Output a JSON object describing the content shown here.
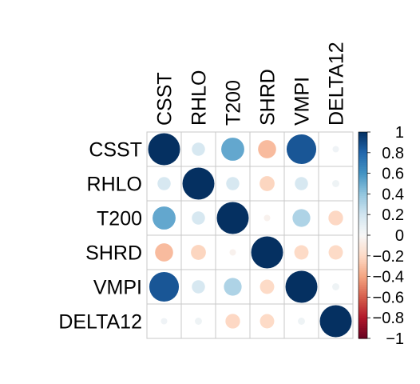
{
  "chart_data": {
    "type": "heatmap",
    "variables": [
      "CSST",
      "RHLO",
      "T200",
      "SHRD",
      "VMPI",
      "DELTA12"
    ],
    "matrix": [
      [
        1.0,
        0.17,
        0.52,
        -0.32,
        0.86,
        0.04
      ],
      [
        0.17,
        1.0,
        0.17,
        -0.22,
        0.17,
        0.05
      ],
      [
        0.52,
        0.17,
        1.0,
        -0.04,
        0.31,
        -0.21
      ],
      [
        -0.32,
        -0.22,
        -0.04,
        1.0,
        -0.2,
        -0.2
      ],
      [
        0.86,
        0.17,
        0.31,
        -0.2,
        1.0,
        0.05
      ],
      [
        0.04,
        0.05,
        -0.21,
        -0.2,
        0.05,
        1.0
      ]
    ],
    "colorbar": {
      "range": [
        -1,
        1
      ],
      "ticks": [
        "1",
        "0.8",
        "0.6",
        "0.4",
        "0.2",
        "0",
        "−0.2",
        "−0.4",
        "−0.6",
        "−0.8",
        "−1"
      ],
      "colors": {
        "neg": "#67001F",
        "mid": "#F7F7F7",
        "pos": "#053061"
      }
    },
    "legend_position": "right"
  }
}
